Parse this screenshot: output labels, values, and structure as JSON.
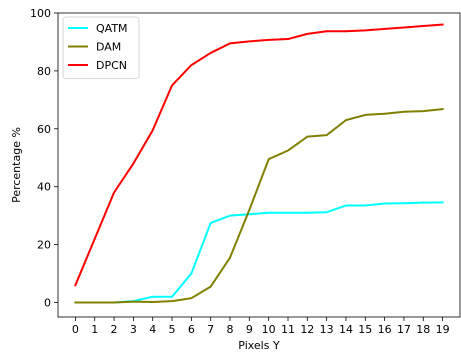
{
  "chart_data": {
    "type": "line",
    "title": "",
    "xlabel": "Pixels Y",
    "ylabel": "Percentage %",
    "xlim": [
      -0.9,
      19.9
    ],
    "ylim": [
      -5,
      100
    ],
    "x_ticks": [
      0,
      1,
      2,
      3,
      4,
      5,
      6,
      7,
      8,
      9,
      10,
      11,
      12,
      13,
      14,
      15,
      16,
      17,
      18,
      19
    ],
    "y_ticks": [
      0,
      20,
      40,
      60,
      80,
      100
    ],
    "grid": false,
    "legend_position": "top-left",
    "x": [
      0,
      1,
      2,
      3,
      4,
      5,
      6,
      7,
      8,
      9,
      10,
      11,
      12,
      13,
      14,
      15,
      16,
      17,
      18,
      19
    ],
    "series": [
      {
        "name": "QATM",
        "color": "#00ffff",
        "values": [
          0,
          0,
          0,
          0.5,
          2,
          2,
          10,
          27.5,
          30,
          30.5,
          31,
          31,
          31,
          31.2,
          33.5,
          33.5,
          34.2,
          34.3,
          34.5,
          34.6
        ]
      },
      {
        "name": "DAM",
        "color": "#808000",
        "values": [
          0,
          0,
          0,
          0.3,
          0.2,
          0.5,
          1.5,
          5.5,
          15.5,
          32,
          49.5,
          52.5,
          57.3,
          57.8,
          63,
          64.8,
          65.2,
          65.9,
          66.1,
          66.8
        ]
      },
      {
        "name": "DPCN",
        "color": "#ff0000",
        "values": [
          6,
          22,
          38,
          48,
          59.5,
          75,
          82,
          86.2,
          89.5,
          90.2,
          90.7,
          91,
          92.8,
          93.7,
          93.7,
          94,
          94.5,
          95,
          95.5,
          96
        ]
      }
    ]
  }
}
